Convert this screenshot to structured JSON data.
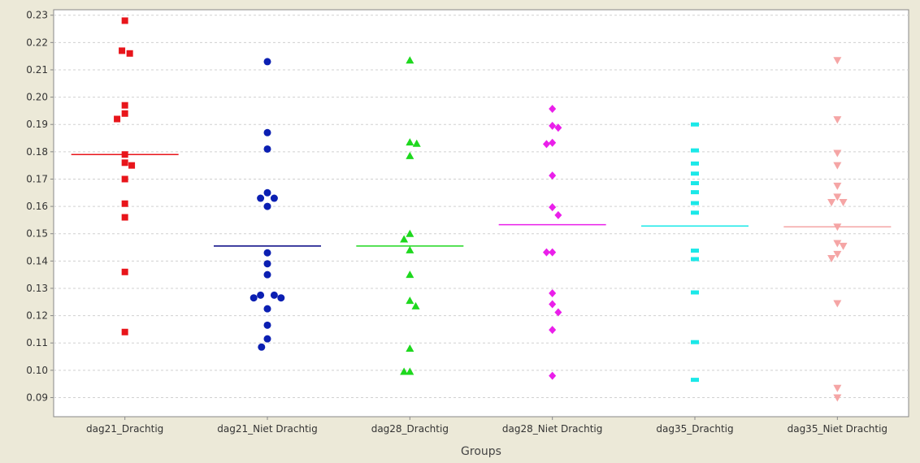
{
  "chart_data": {
    "type": "scatter",
    "title": "",
    "xlabel": "Groups",
    "ylabel": "",
    "ylim": [
      0.083,
      0.232
    ],
    "yticks": [
      "0.09",
      "0.10",
      "0.11",
      "0.12",
      "0.13",
      "0.14",
      "0.15",
      "0.16",
      "0.17",
      "0.18",
      "0.19",
      "0.20",
      "0.21",
      "0.22",
      "0.23"
    ],
    "grid": "horizontal dashed",
    "legend": "none",
    "categories": [
      "dag21_Drachtig",
      "dag21_Niet Drachtig",
      "dag28_Drachtig",
      "dag28_Niet Drachtig",
      "dag35_Drachtig",
      "dag35_Niet Drachtig"
    ],
    "series": [
      {
        "category": "dag21_Drachtig",
        "marker": "square",
        "color": "#e8151b",
        "mean": 0.179,
        "points": [
          {
            "x": 0,
            "y": 0.228
          },
          {
            "x": -0.3,
            "y": 0.217
          },
          {
            "x": 0.5,
            "y": 0.216
          },
          {
            "x": 0,
            "y": 0.197
          },
          {
            "x": 0,
            "y": 0.194
          },
          {
            "x": -0.8,
            "y": 0.192
          },
          {
            "x": 0,
            "y": 0.179
          },
          {
            "x": 0,
            "y": 0.176
          },
          {
            "x": 0.7,
            "y": 0.175
          },
          {
            "x": 0,
            "y": 0.17
          },
          {
            "x": 0,
            "y": 0.161
          },
          {
            "x": 0,
            "y": 0.156
          },
          {
            "x": 0,
            "y": 0.136
          },
          {
            "x": 0,
            "y": 0.114
          }
        ]
      },
      {
        "category": "dag21_Niet Drachtig",
        "marker": "circle",
        "color": "#0b1fb2",
        "mean": 0.1455,
        "points": [
          {
            "x": 0,
            "y": 0.213
          },
          {
            "x": 0,
            "y": 0.187
          },
          {
            "x": 0,
            "y": 0.181
          },
          {
            "x": 0,
            "y": 0.165
          },
          {
            "x": -0.7,
            "y": 0.163
          },
          {
            "x": 0.7,
            "y": 0.163
          },
          {
            "x": 0,
            "y": 0.16
          },
          {
            "x": 0,
            "y": 0.143
          },
          {
            "x": 0,
            "y": 0.139
          },
          {
            "x": 0,
            "y": 0.135
          },
          {
            "x": -0.7,
            "y": 0.1275
          },
          {
            "x": 0.7,
            "y": 0.1275
          },
          {
            "x": -1.4,
            "y": 0.1265
          },
          {
            "x": 1.4,
            "y": 0.1265
          },
          {
            "x": 0,
            "y": 0.1225
          },
          {
            "x": 0,
            "y": 0.1165
          },
          {
            "x": 0,
            "y": 0.1115
          },
          {
            "x": -0.6,
            "y": 0.1085
          }
        ]
      },
      {
        "category": "dag28_Drachtig",
        "marker": "triangle-up",
        "color": "#1ed81e",
        "mean": 0.1455,
        "points": [
          {
            "x": 0,
            "y": 0.2135
          },
          {
            "x": 0,
            "y": 0.1835
          },
          {
            "x": 0.7,
            "y": 0.183
          },
          {
            "x": 0,
            "y": 0.1785
          },
          {
            "x": 0,
            "y": 0.15
          },
          {
            "x": -0.6,
            "y": 0.148
          },
          {
            "x": 0,
            "y": 0.144
          },
          {
            "x": 0,
            "y": 0.135
          },
          {
            "x": 0,
            "y": 0.1255
          },
          {
            "x": 0.6,
            "y": 0.1235
          },
          {
            "x": 0,
            "y": 0.108
          },
          {
            "x": -0.6,
            "y": 0.0995
          },
          {
            "x": 0,
            "y": 0.0995
          }
        ]
      },
      {
        "category": "dag28_Niet Drachtig",
        "marker": "diamond",
        "color": "#ea1fea",
        "mean": 0.1533,
        "points": [
          {
            "x": 0,
            "y": 0.1957
          },
          {
            "x": 0,
            "y": 0.1895
          },
          {
            "x": 0.6,
            "y": 0.1888
          },
          {
            "x": 0,
            "y": 0.1833
          },
          {
            "x": -0.6,
            "y": 0.1828
          },
          {
            "x": 0,
            "y": 0.1713
          },
          {
            "x": 0,
            "y": 0.1597
          },
          {
            "x": 0.6,
            "y": 0.1568
          },
          {
            "x": -0.6,
            "y": 0.1432
          },
          {
            "x": 0,
            "y": 0.1432
          },
          {
            "x": 0,
            "y": 0.1282
          },
          {
            "x": 0,
            "y": 0.1242
          },
          {
            "x": 0.6,
            "y": 0.1212
          },
          {
            "x": 0,
            "y": 0.1148
          },
          {
            "x": 0,
            "y": 0.098
          }
        ]
      },
      {
        "category": "dag35_Drachtig",
        "marker": "dash",
        "color": "#1be8e8",
        "mean": 0.1528,
        "points": [
          {
            "x": 0,
            "y": 0.19
          },
          {
            "x": 0,
            "y": 0.1805
          },
          {
            "x": 0,
            "y": 0.1757
          },
          {
            "x": 0,
            "y": 0.172
          },
          {
            "x": 0,
            "y": 0.1685
          },
          {
            "x": 0,
            "y": 0.1652
          },
          {
            "x": 0,
            "y": 0.1612
          },
          {
            "x": 0,
            "y": 0.1577
          },
          {
            "x": 0,
            "y": 0.1438
          },
          {
            "x": 0,
            "y": 0.1407
          },
          {
            "x": 0,
            "y": 0.1285
          },
          {
            "x": 0,
            "y": 0.1103
          },
          {
            "x": 0,
            "y": 0.0965
          }
        ]
      },
      {
        "category": "dag35_Niet Drachtig",
        "marker": "triangle-down",
        "color": "#f5a5a5",
        "mean": 0.1525,
        "points": [
          {
            "x": 0,
            "y": 0.2135
          },
          {
            "x": 0,
            "y": 0.1918
          },
          {
            "x": 0,
            "y": 0.1795
          },
          {
            "x": 0,
            "y": 0.175
          },
          {
            "x": 0,
            "y": 0.1675
          },
          {
            "x": 0,
            "y": 0.1635
          },
          {
            "x": -0.6,
            "y": 0.1615
          },
          {
            "x": 0.6,
            "y": 0.1615
          },
          {
            "x": 0,
            "y": 0.1525
          },
          {
            "x": 0,
            "y": 0.1465
          },
          {
            "x": 0.6,
            "y": 0.1455
          },
          {
            "x": 0,
            "y": 0.1425
          },
          {
            "x": -0.6,
            "y": 0.141
          },
          {
            "x": 0,
            "y": 0.1245
          },
          {
            "x": 0,
            "y": 0.0935
          },
          {
            "x": 0,
            "y": 0.09
          }
        ]
      }
    ]
  }
}
